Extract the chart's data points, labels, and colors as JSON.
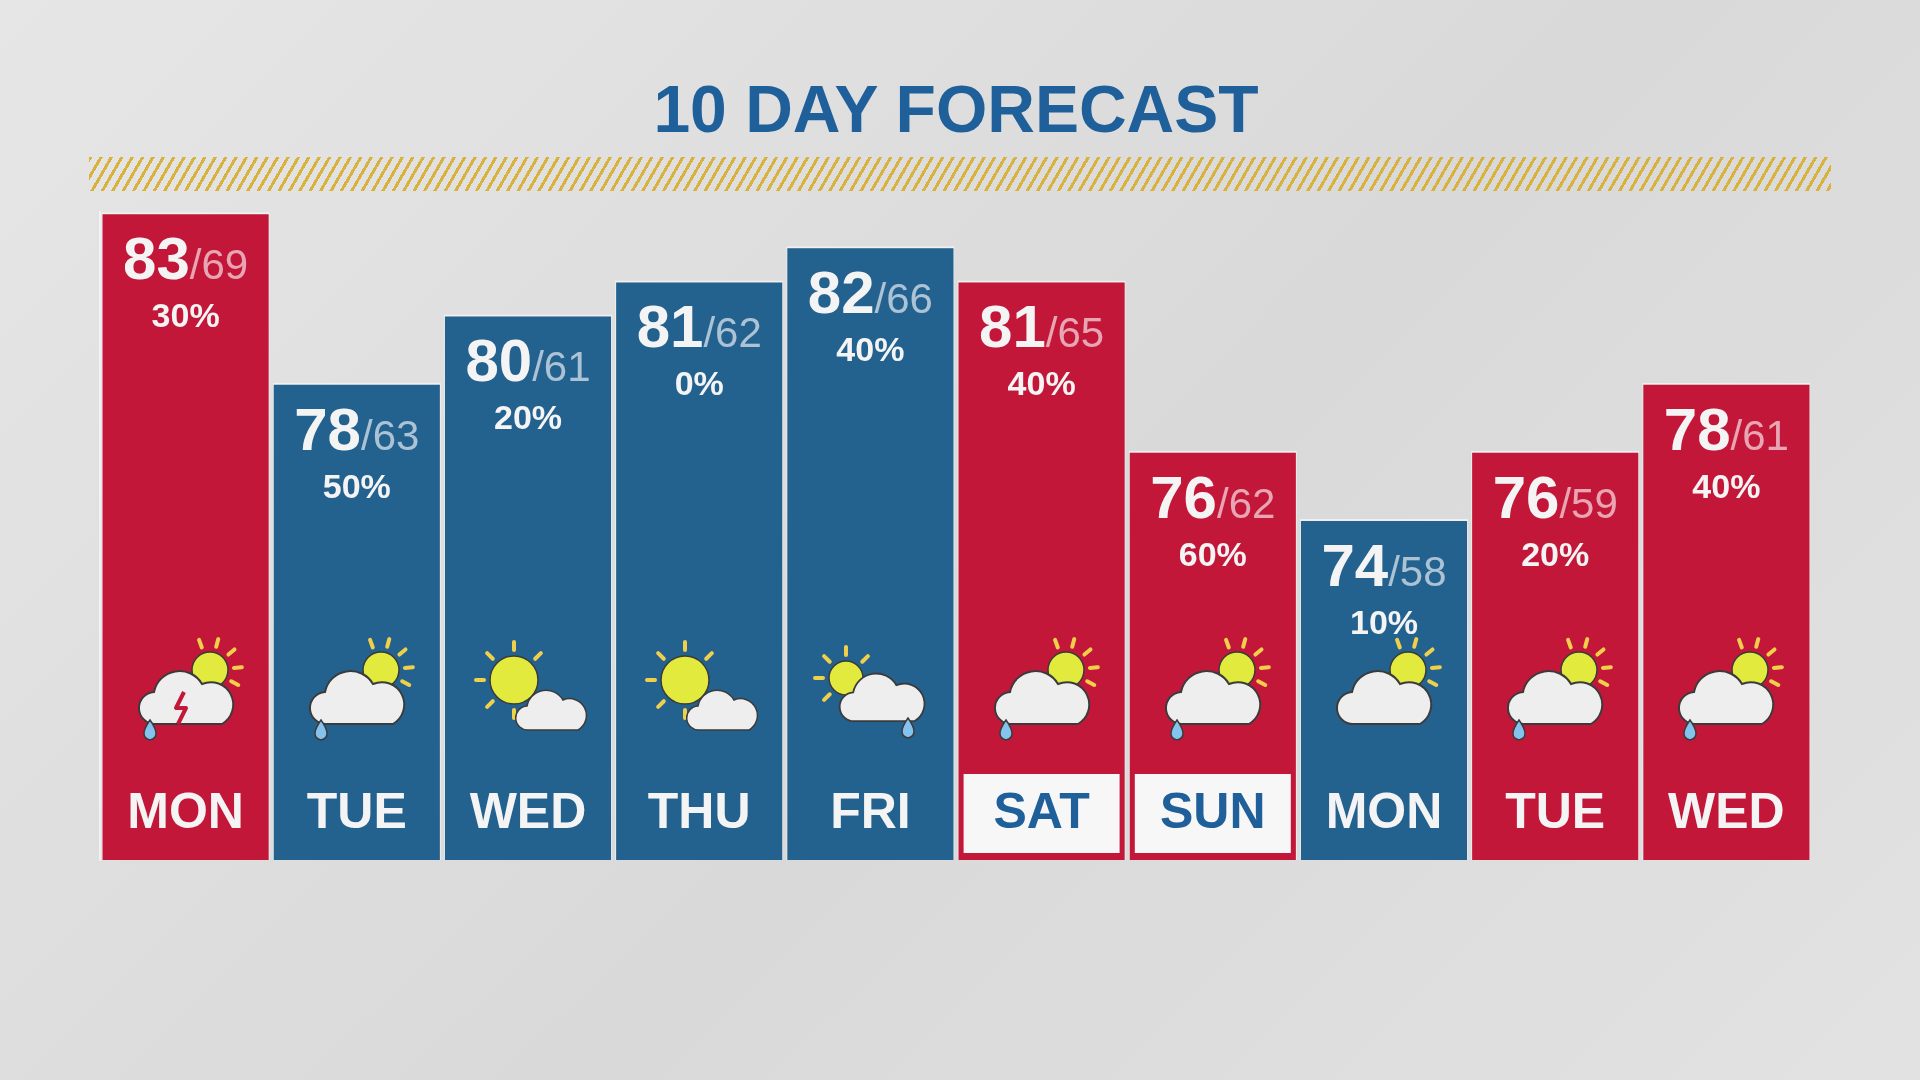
{
  "chart_data": {
    "type": "bar",
    "title": "10 DAY FORECAST",
    "categories": [
      "MON",
      "TUE",
      "WED",
      "THU",
      "FRI",
      "SAT",
      "SUN",
      "MON",
      "TUE",
      "WED"
    ],
    "values": [
      83,
      78,
      80,
      81,
      82,
      81,
      76,
      74,
      76,
      78
    ],
    "ylim": [
      64,
      83
    ],
    "tick_labels": "x",
    "colors": [
      "#c3173a",
      "#23618f",
      "#23618f",
      "#23618f",
      "#23618f",
      "#c3173a",
      "#c3173a",
      "#23618f",
      "#c3173a",
      "#c3173a"
    ],
    "value_labels": [
      "83/69\n30%",
      "78/63\n50%",
      "80/61\n20%",
      "81/62\n0%",
      "82/66\n40%",
      "81/65\n40%",
      "76/62\n60%",
      "74/58\n10%",
      "76/59\n20%",
      "78/61\n40%"
    ]
  }
}
